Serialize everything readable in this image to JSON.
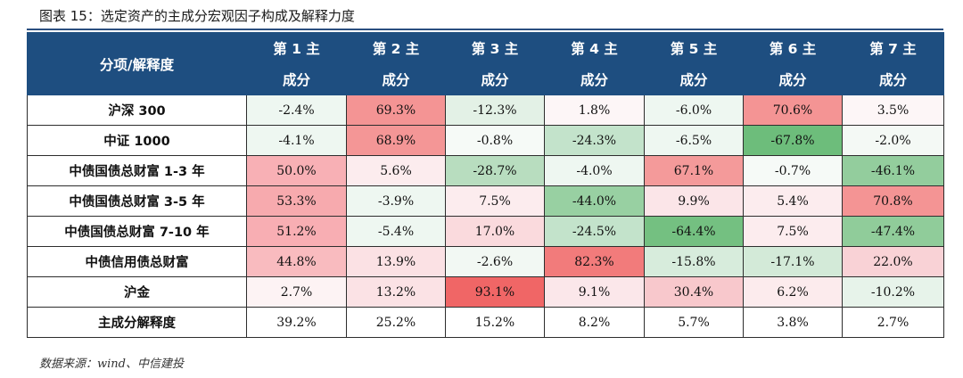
{
  "title": "图表 15：选定资产的主成分宏观因子构成及解释力度",
  "header": {
    "corner": "分项/解释度",
    "columns": [
      {
        "line1": "第 1 主",
        "line2": "成分"
      },
      {
        "line1": "第 2 主",
        "line2": "成分"
      },
      {
        "line1": "第 3 主",
        "line2": "成分"
      },
      {
        "line1": "第 4 主",
        "line2": "成分"
      },
      {
        "line1": "第 5 主",
        "line2": "成分"
      },
      {
        "line1": "第 6 主",
        "line2": "成分"
      },
      {
        "line1": "第 7 主",
        "line2": "成分"
      }
    ]
  },
  "rows": [
    {
      "label": "沪深 300",
      "cells": [
        {
          "value": "-2.4%",
          "bg": "#eef7f1"
        },
        {
          "value": "69.3%",
          "bg": "#f49494"
        },
        {
          "value": "-12.3%",
          "bg": "#e3f1e6"
        },
        {
          "value": "1.8%",
          "bg": "#fdf6f7"
        },
        {
          "value": "-6.0%",
          "bg": "#eef7f1"
        },
        {
          "value": "70.6%",
          "bg": "#f49494"
        },
        {
          "value": "3.5%",
          "bg": "#fdf6f7"
        }
      ]
    },
    {
      "label": "中证 1000",
      "cells": [
        {
          "value": "-4.1%",
          "bg": "#eef7f1"
        },
        {
          "value": "68.9%",
          "bg": "#f49696"
        },
        {
          "value": "-0.8%",
          "bg": "#f6faf7"
        },
        {
          "value": "-24.3%",
          "bg": "#c3e3cb"
        },
        {
          "value": "-6.5%",
          "bg": "#eef7f1"
        },
        {
          "value": "-67.8%",
          "bg": "#6dbd7b"
        },
        {
          "value": "-2.0%",
          "bg": "#f4f9f5"
        }
      ]
    },
    {
      "label": "中债国债总财富 1-3 年",
      "cells": [
        {
          "value": "50.0%",
          "bg": "#f8b0b5"
        },
        {
          "value": "5.6%",
          "bg": "#fcecee"
        },
        {
          "value": "-28.7%",
          "bg": "#b8ddbf"
        },
        {
          "value": "-4.0%",
          "bg": "#eef7f1"
        },
        {
          "value": "67.1%",
          "bg": "#f49a9a"
        },
        {
          "value": "-0.7%",
          "bg": "#f6faf7"
        },
        {
          "value": "-46.1%",
          "bg": "#93cd9d"
        }
      ]
    },
    {
      "label": "中债国债总财富 3-5 年",
      "cells": [
        {
          "value": "53.3%",
          "bg": "#f7aaae"
        },
        {
          "value": "-3.9%",
          "bg": "#eef7f1"
        },
        {
          "value": "7.5%",
          "bg": "#fcecee"
        },
        {
          "value": "-44.0%",
          "bg": "#98d0a2"
        },
        {
          "value": "9.9%",
          "bg": "#fbe5e8"
        },
        {
          "value": "5.4%",
          "bg": "#fcecee"
        },
        {
          "value": "70.8%",
          "bg": "#f49494"
        }
      ]
    },
    {
      "label": "中债国债总财富 7-10 年",
      "cells": [
        {
          "value": "51.2%",
          "bg": "#f8aeb3"
        },
        {
          "value": "-5.4%",
          "bg": "#eef7f1"
        },
        {
          "value": "17.0%",
          "bg": "#fadadd"
        },
        {
          "value": "-24.5%",
          "bg": "#c3e3cb"
        },
        {
          "value": "-64.4%",
          "bg": "#74c081"
        },
        {
          "value": "7.5%",
          "bg": "#fcecee"
        },
        {
          "value": "-47.4%",
          "bg": "#90cc9a"
        }
      ]
    },
    {
      "label": "中债信用债总财富",
      "cells": [
        {
          "value": "44.8%",
          "bg": "#f9bbbf"
        },
        {
          "value": "13.9%",
          "bg": "#fbe1e4"
        },
        {
          "value": "-2.6%",
          "bg": "#f2f8f3"
        },
        {
          "value": "82.3%",
          "bg": "#f27b7b"
        },
        {
          "value": "-15.8%",
          "bg": "#d7ecdc"
        },
        {
          "value": "-17.1%",
          "bg": "#d3ead8"
        },
        {
          "value": "22.0%",
          "bg": "#f9d2d6"
        }
      ]
    },
    {
      "label": "沪金",
      "cells": [
        {
          "value": "2.7%",
          "bg": "#fdf3f4"
        },
        {
          "value": "13.2%",
          "bg": "#fbe2e5"
        },
        {
          "value": "93.1%",
          "bg": "#f06666"
        },
        {
          "value": "9.1%",
          "bg": "#fbe7ea"
        },
        {
          "value": "30.4%",
          "bg": "#f8c8cc"
        },
        {
          "value": "6.2%",
          "bg": "#fcebed"
        },
        {
          "value": "-10.2%",
          "bg": "#e7f3ea"
        }
      ]
    },
    {
      "label": "主成分解释度",
      "cells": [
        {
          "value": "39.2%",
          "bg": "#ffffff"
        },
        {
          "value": "25.2%",
          "bg": "#ffffff"
        },
        {
          "value": "15.2%",
          "bg": "#ffffff"
        },
        {
          "value": "8.2%",
          "bg": "#ffffff"
        },
        {
          "value": "5.7%",
          "bg": "#ffffff"
        },
        {
          "value": "3.8%",
          "bg": "#ffffff"
        },
        {
          "value": "2.7%",
          "bg": "#ffffff"
        }
      ]
    }
  ],
  "source": "数据来源：wind、中信建投",
  "colors": {
    "header_bg": "#1e4e80",
    "header_text": "#ffffff",
    "title_rule": "#2b4f80"
  }
}
